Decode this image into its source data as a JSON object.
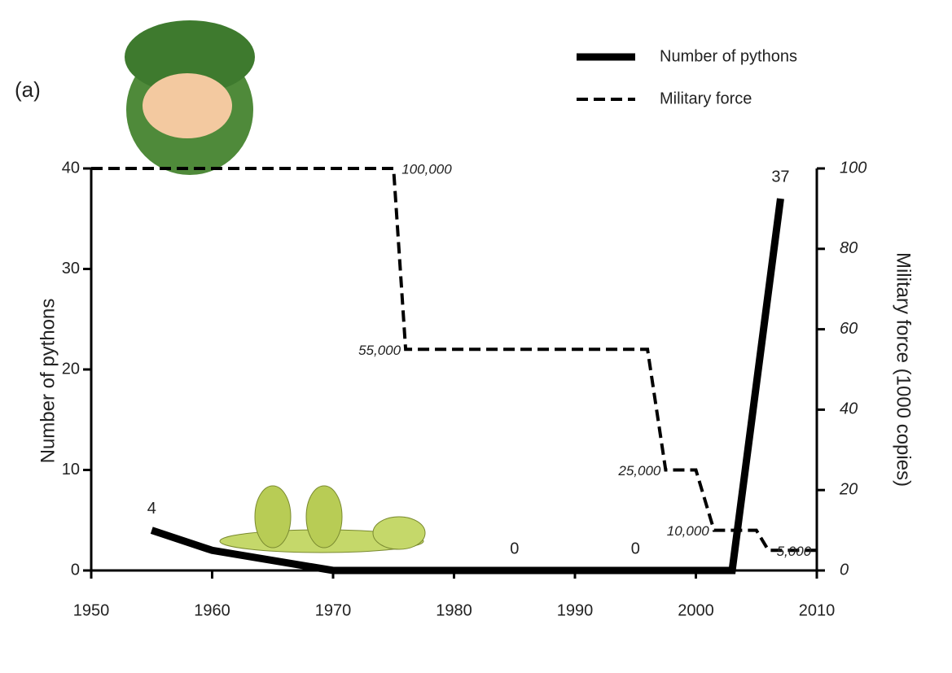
{
  "chart_data": {
    "type": "line",
    "panel_label": "(a)",
    "y_label": "Number of pythons",
    "y2_label": "Military force (1000 copies)",
    "xlim": [
      1950,
      2010
    ],
    "xticks": [
      1950,
      1960,
      1970,
      1980,
      1990,
      2000,
      2010
    ],
    "ylim": [
      0,
      40
    ],
    "yticks": [
      0,
      10,
      20,
      30,
      40
    ],
    "y2lim": [
      0,
      100
    ],
    "y2ticks": [
      0,
      20,
      40,
      60,
      80,
      100
    ],
    "legend": "upper right",
    "series": [
      {
        "name": "Number of pythons",
        "color": "#000000",
        "style": "solid",
        "x": [
          1955,
          1960,
          1970,
          1985,
          1995,
          2003,
          2007
        ],
        "values": [
          4,
          2,
          0,
          0,
          0,
          0,
          37
        ],
        "value_labels": [
          "4",
          null,
          null,
          "0",
          "0",
          null,
          "37"
        ]
      },
      {
        "name": "Military force",
        "color": "#000000",
        "style": "dashed",
        "axis": "y2",
        "x": [
          1950,
          1975,
          1976,
          1996,
          1997.5,
          2000,
          2001.5,
          2005,
          2006,
          2010
        ],
        "values": [
          100,
          100,
          55,
          55,
          25,
          25,
          10,
          10,
          5,
          5
        ],
        "value_labels": [
          null,
          "100,000",
          "55,000",
          null,
          "25,000",
          null,
          "10,000",
          null,
          "5,000",
          null
        ]
      }
    ]
  }
}
